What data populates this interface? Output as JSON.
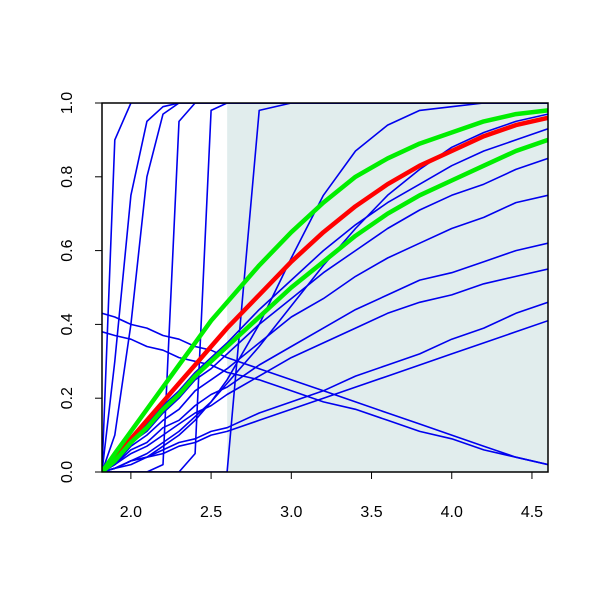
{
  "chart_data": {
    "type": "line",
    "x": [
      1.82,
      1.9,
      2.0,
      2.1,
      2.2,
      2.3,
      2.4,
      2.5,
      2.6,
      2.8,
      3.0,
      3.2,
      3.4,
      3.6,
      3.8,
      4.0,
      4.2,
      4.4,
      4.6
    ],
    "xlim": [
      1.82,
      4.6
    ],
    "ylim": [
      0,
      1
    ],
    "xticks": [
      {
        "value": 2,
        "label": "2.0"
      },
      2.5,
      {
        "value": 3,
        "label": "3.0"
      },
      3.5,
      {
        "value": 4,
        "label": "4.0"
      },
      4.5
    ],
    "yticks": [
      {
        "value": 0,
        "label": "0.0"
      },
      0.2,
      0.4,
      0.6,
      0.8,
      {
        "value": 1,
        "label": "1.0"
      }
    ],
    "band": {
      "xlim": [
        2.6,
        4.6
      ],
      "color": "#e1eded"
    },
    "series": [
      {
        "color": "#0000ee",
        "values": [
          0,
          0.9,
          1,
          1,
          1,
          1,
          1,
          1,
          1,
          1,
          1,
          1,
          1,
          1,
          1,
          1,
          1,
          1,
          1
        ]
      },
      {
        "color": "#0000ee",
        "values": [
          0,
          0.3,
          0.75,
          0.95,
          0.99,
          1,
          1,
          1,
          1,
          1,
          1,
          1,
          1,
          1,
          1,
          1,
          1,
          1,
          1
        ]
      },
      {
        "color": "#0000ee",
        "values": [
          0,
          0.1,
          0.4,
          0.8,
          0.97,
          1,
          1,
          1,
          1,
          1,
          1,
          1,
          1,
          1,
          1,
          1,
          1,
          1,
          1
        ]
      },
      {
        "color": "#0000ee",
        "values": [
          0,
          0,
          0,
          0,
          0.02,
          0.95,
          1,
          1,
          1,
          1,
          1,
          1,
          1,
          1,
          1,
          1,
          1,
          1,
          1
        ]
      },
      {
        "color": "#0000ee",
        "values": [
          0,
          0,
          0,
          0,
          0,
          0,
          0.05,
          0.98,
          1,
          1,
          1,
          1,
          1,
          1,
          1,
          1,
          1,
          1,
          1
        ]
      },
      {
        "color": "#0000ee",
        "values": [
          0,
          0,
          0,
          0,
          0,
          0,
          0,
          0,
          0,
          0.98,
          1,
          1,
          1,
          1,
          1,
          1,
          1,
          1,
          1
        ]
      },
      {
        "color": "#0000ee",
        "values": [
          0.43,
          0.42,
          0.4,
          0.39,
          0.37,
          0.36,
          0.34,
          0.33,
          0.31,
          0.28,
          0.25,
          0.22,
          0.19,
          0.16,
          0.13,
          0.1,
          0.07,
          0.04,
          0.02
        ]
      },
      {
        "color": "#0000ee",
        "values": [
          0.38,
          0.37,
          0.36,
          0.34,
          0.33,
          0.31,
          0.3,
          0.29,
          0.27,
          0.25,
          0.22,
          0.19,
          0.17,
          0.14,
          0.11,
          0.09,
          0.06,
          0.04,
          0.02
        ]
      },
      {
        "color": "#0000ee",
        "values": [
          0,
          0.01,
          0.03,
          0.04,
          0.06,
          0.08,
          0.09,
          0.11,
          0.12,
          0.16,
          0.19,
          0.22,
          0.26,
          0.29,
          0.32,
          0.36,
          0.39,
          0.43,
          0.46
        ]
      },
      {
        "color": "#0000ee",
        "values": [
          0,
          0.01,
          0.03,
          0.04,
          0.05,
          0.07,
          0.08,
          0.1,
          0.11,
          0.14,
          0.17,
          0.2,
          0.23,
          0.26,
          0.29,
          0.32,
          0.35,
          0.38,
          0.41
        ]
      },
      {
        "color": "#0000ee",
        "values": [
          0,
          0.02,
          0.05,
          0.07,
          0.1,
          0.13,
          0.16,
          0.18,
          0.21,
          0.26,
          0.31,
          0.35,
          0.39,
          0.43,
          0.46,
          0.48,
          0.51,
          0.53,
          0.55
        ]
      },
      {
        "color": "#0000ee",
        "values": [
          0,
          0.02,
          0.06,
          0.08,
          0.12,
          0.14,
          0.18,
          0.21,
          0.23,
          0.29,
          0.34,
          0.39,
          0.44,
          0.48,
          0.52,
          0.54,
          0.57,
          0.6,
          0.62
        ]
      },
      {
        "color": "#0000ee",
        "values": [
          0,
          0.02,
          0.07,
          0.1,
          0.14,
          0.17,
          0.22,
          0.25,
          0.28,
          0.35,
          0.42,
          0.47,
          0.53,
          0.58,
          0.62,
          0.66,
          0.69,
          0.73,
          0.75
        ]
      },
      {
        "color": "#0000ee",
        "values": [
          0,
          0.03,
          0.08,
          0.11,
          0.16,
          0.2,
          0.25,
          0.28,
          0.32,
          0.4,
          0.47,
          0.54,
          0.6,
          0.66,
          0.71,
          0.75,
          0.78,
          0.82,
          0.85
        ]
      },
      {
        "color": "#0000ee",
        "values": [
          0,
          0.03,
          0.08,
          0.13,
          0.18,
          0.22,
          0.27,
          0.31,
          0.35,
          0.44,
          0.52,
          0.6,
          0.67,
          0.73,
          0.78,
          0.83,
          0.87,
          0.9,
          0.93
        ]
      },
      {
        "color": "#0000ee",
        "values": [
          0,
          0.01,
          0.02,
          0.04,
          0.07,
          0.1,
          0.14,
          0.19,
          0.25,
          0.4,
          0.58,
          0.75,
          0.87,
          0.94,
          0.98,
          0.99,
          1,
          1,
          1
        ]
      },
      {
        "color": "#0000ee",
        "values": [
          0,
          0.01,
          0.03,
          0.05,
          0.08,
          0.11,
          0.15,
          0.19,
          0.24,
          0.34,
          0.45,
          0.56,
          0.66,
          0.75,
          0.82,
          0.88,
          0.92,
          0.95,
          0.97
        ]
      },
      {
        "color": "#ff0000",
        "values": [
          0,
          0.04,
          0.09,
          0.14,
          0.19,
          0.24,
          0.29,
          0.34,
          0.39,
          0.48,
          0.57,
          0.65,
          0.72,
          0.78,
          0.83,
          0.87,
          0.91,
          0.94,
          0.96
        ]
      },
      {
        "color": "#00ee00",
        "values": [
          0,
          0.05,
          0.11,
          0.17,
          0.23,
          0.29,
          0.35,
          0.41,
          0.46,
          0.56,
          0.65,
          0.73,
          0.8,
          0.85,
          0.89,
          0.92,
          0.95,
          0.97,
          0.98
        ]
      },
      {
        "color": "#00ee00",
        "values": [
          0,
          0.03,
          0.08,
          0.12,
          0.17,
          0.21,
          0.26,
          0.3,
          0.34,
          0.42,
          0.5,
          0.57,
          0.64,
          0.7,
          0.75,
          0.79,
          0.83,
          0.87,
          0.9
        ]
      }
    ]
  }
}
